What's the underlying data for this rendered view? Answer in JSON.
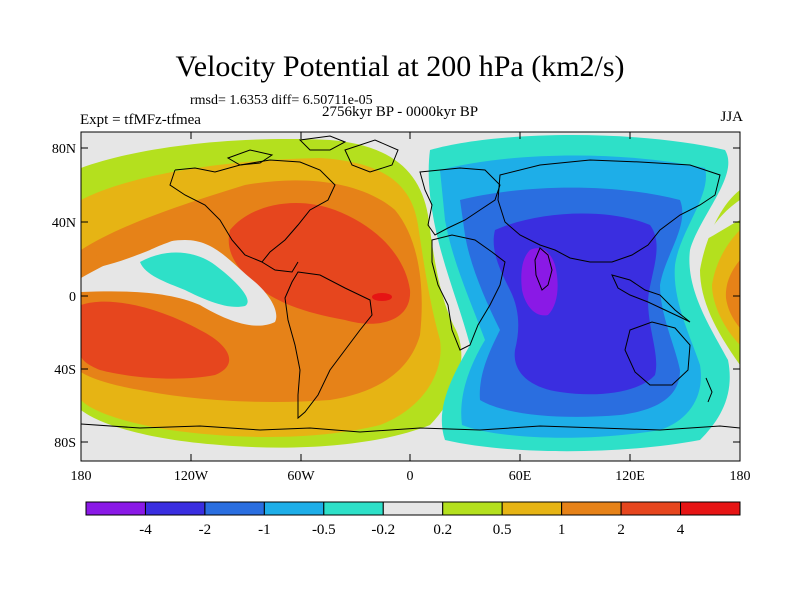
{
  "title": "Velocity Potential at 200 hPa (km2/s)",
  "stats": "rmsd= 1.6353 diff= 6.50711e-05",
  "experiment": "Expt = tfMFz-tfmea",
  "period": "2756kyr BP - 0000kyr BP",
  "season": "JJA",
  "lat_ticks": [
    "80N",
    "40N",
    "0",
    "40S",
    "80S"
  ],
  "lon_ticks": [
    "180",
    "120W",
    "60W",
    "0",
    "60E",
    "120E",
    "180"
  ],
  "colorbar": {
    "labels": [
      "-4",
      "-2",
      "-1",
      "-0.5",
      "-0.2",
      "0.2",
      "0.5",
      "1",
      "2",
      "4"
    ],
    "colors": [
      "#8a19e6",
      "#3a2ee0",
      "#2a6ee0",
      "#1eaee8",
      "#2ee0c8",
      "#e6e6e6",
      "#b4e01e",
      "#e6b414",
      "#e68218",
      "#e6461e",
      "#e61414"
    ]
  }
}
